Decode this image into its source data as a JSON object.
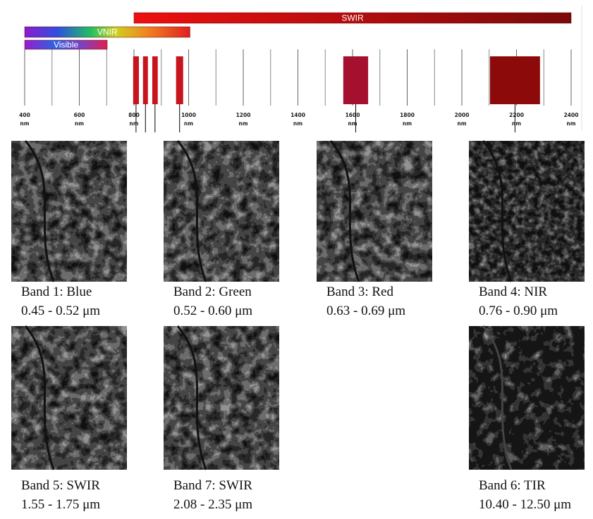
{
  "spectrum": {
    "unit": "nm",
    "xlim": [
      400,
      2400
    ],
    "xticks": [
      400,
      600,
      800,
      1000,
      1200,
      1400,
      1600,
      1800,
      2000,
      2200,
      2400
    ],
    "minor_ticks": [
      500,
      700,
      900,
      1100,
      1300,
      1500,
      1700,
      1900,
      2100,
      2300
    ],
    "ranges": [
      {
        "label": "SWIR",
        "start": 800,
        "end": 2400
      },
      {
        "label": "VNIR",
        "start": 400,
        "end": 1005
      },
      {
        "label": "Visible",
        "start": 400,
        "end": 702
      }
    ],
    "bands": [
      {
        "start": 797,
        "end": 818,
        "color": "#c8141e"
      },
      {
        "start": 833,
        "end": 851,
        "color": "#c8141e"
      },
      {
        "start": 867,
        "end": 887,
        "color": "#c8141e"
      },
      {
        "start": 954,
        "end": 980,
        "color": "#c8141e"
      },
      {
        "start": 1566,
        "end": 1657,
        "color": "#a5102f"
      },
      {
        "start": 2103,
        "end": 2286,
        "color": "#8c0a0a"
      }
    ]
  },
  "panels": [
    {
      "band": "Band 1: Blue",
      "range": "0.45 - 0.52 μm"
    },
    {
      "band": "Band 2: Green",
      "range": "0.52 - 0.60 μm"
    },
    {
      "band": "Band 3: Red",
      "range": "0.63 - 0.69 μm"
    },
    {
      "band": "Band 4: NIR",
      "range": "0.76 - 0.90 μm"
    },
    {
      "band": "Band 5: SWIR",
      "range": "1.55 - 1.75 μm"
    },
    {
      "band": "Band 7: SWIR",
      "range": "2.08 - 2.35 μm"
    },
    {
      "band": "Band 6: TIR",
      "range": "10.40 - 12.50 μm"
    }
  ]
}
